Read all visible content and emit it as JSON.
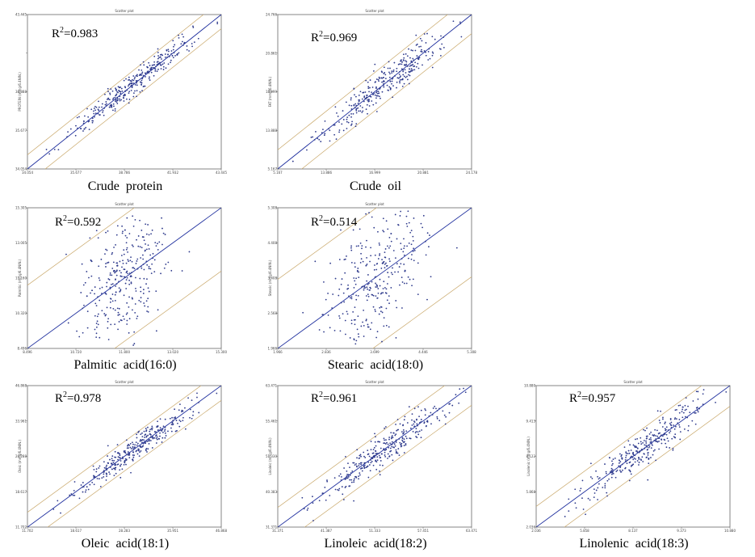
{
  "chart_data": [
    {
      "type": "scatter",
      "title": "Scatter plot",
      "caption": "Crude  protein",
      "r2_label": "=0.983",
      "ylabel": "PROTEIN (mmg/6.4NIN.)",
      "xticks": [
        "34.054",
        "35.677",
        "38.786",
        "41.932",
        "43.445"
      ],
      "yticks": [
        "34.054",
        "35.677",
        "38.888",
        "",
        "43.445"
      ],
      "xlim": [
        34.054,
        43.445
      ],
      "ylim": [
        34.054,
        43.445
      ],
      "r2": 0.983
    },
    {
      "type": "scatter",
      "title": "Scatter plot",
      "caption": "Crude  oil",
      "r2_label": "=0.969",
      "ylabel": "FAT (mmg/6.4NIN.)",
      "xticks": [
        "5.167",
        "13.886",
        "16.999",
        "20.881",
        "24.178"
      ],
      "yticks": [
        "5.167",
        "13.888",
        "18.999",
        "20.861",
        "24.766"
      ],
      "xlim": [
        5.167,
        24.178
      ],
      "ylim": [
        5.167,
        24.178
      ],
      "r2": 0.969
    },
    {
      "type": "scatter",
      "title": "Scatter plot",
      "caption": "Palmitic  acid(16:0)",
      "r2_label": "=0.592",
      "ylabel": "Palmitic (mmg/6.4NIN.)",
      "xticks": [
        "8.496",
        "10.720",
        "11.800",
        "13.020",
        "15.300"
      ],
      "yticks": [
        "8.496",
        "10.320",
        "11.160",
        "13.005",
        "15.305"
      ],
      "xlim": [
        8.496,
        15.3
      ],
      "ylim": [
        8.496,
        15.305
      ],
      "r2": 0.592
    },
    {
      "type": "scatter",
      "title": "Scatter plot",
      "caption": "Stearic  acid(18:0)",
      "r2_label": "=0.514",
      "ylabel": "Stearic (mmg/6.4NIN.)",
      "xticks": [
        "1.966",
        "2.836",
        "3.699",
        "4.446",
        "5.308"
      ],
      "yticks": [
        "1.966",
        "2.568",
        "3.408",
        "4.408",
        "5.308"
      ],
      "xlim": [
        1.966,
        5.308
      ],
      "ylim": [
        1.966,
        5.308
      ],
      "r2": 0.514
    },
    {
      "type": "scatter",
      "title": "Scatter plot",
      "caption": "Oleic  acid(18:1)",
      "r2_label": "=0.978",
      "ylabel": "Oleic (mmg/6.4NIN.)",
      "xticks": [
        "11.702",
        "18.617",
        "28.283",
        "35.951",
        "46.868"
      ],
      "yticks": [
        "11.702",
        "18.617",
        "28.288",
        "33.961",
        "46.868"
      ],
      "xlim": [
        11.702,
        46.868
      ],
      "ylim": [
        11.702,
        46.868
      ],
      "r2": 0.978
    },
    {
      "type": "scatter",
      "title": "Scatter plot",
      "caption": "Linoleic  acid(18:2)",
      "r2_label": "=0.961",
      "ylabel": "Linoleic (mmg/6.4NIN.)",
      "xticks": [
        "31.371",
        "41.387",
        "51.333",
        "57.451",
        "63.471"
      ],
      "yticks": [
        "31.371",
        "40.383",
        "51.330",
        "55.461",
        "63.471"
      ],
      "xlim": [
        31.371,
        63.471
      ],
      "ylim": [
        31.371,
        63.471
      ],
      "r2": 0.961
    },
    {
      "type": "scatter",
      "title": "Scatter plot",
      "caption": "Linolenic  acid(18:3)",
      "r2_label": "=0.957",
      "ylabel": "Linolenic (mmg/6.4NIN.)",
      "xticks": [
        "2.036",
        "5.858",
        "8.137",
        "9.373",
        "10.880"
      ],
      "yticks": [
        "2.036",
        "5.868",
        "8.122",
        "9.413",
        "10.880"
      ],
      "xlim": [
        2.036,
        10.88
      ],
      "ylim": [
        2.036,
        10.88
      ],
      "r2": 0.957
    }
  ],
  "colors": {
    "points": "#2e3a8c",
    "regression": "#1f2f9e",
    "bands": "#c9a86a",
    "frame": "#666666"
  }
}
